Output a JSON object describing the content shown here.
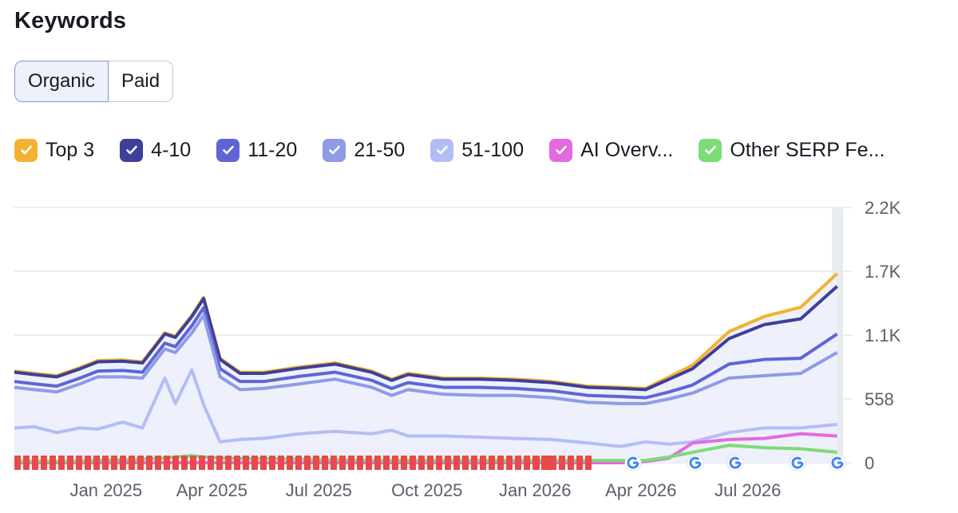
{
  "header": {
    "title": "Keywords"
  },
  "tabs": [
    {
      "label": "Organic",
      "active": true
    },
    {
      "label": "Paid",
      "active": false
    }
  ],
  "legend": [
    {
      "label": "Top 3",
      "color": "#f2b233"
    },
    {
      "label": "4-10",
      "color": "#3d3f99"
    },
    {
      "label": "11-20",
      "color": "#5f65d4"
    },
    {
      "label": "21-50",
      "color": "#8f9be6"
    },
    {
      "label": "51-100",
      "color": "#b3bdf5"
    },
    {
      "label": "AI Overv...",
      "color": "#e46adf"
    },
    {
      "label": "Other SERP Fe...",
      "color": "#7ddc75"
    }
  ],
  "colors": {
    "gridline": "#e6e8ee",
    "tick_text": "#5b5f6b",
    "area_fill": "#eef0fc",
    "event_marker": "#e84a4a"
  },
  "chart_data": {
    "type": "area",
    "stacked": true,
    "x_unit": "month",
    "x_range": [
      "2024-10-15",
      "2026-09-20"
    ],
    "x_ticks": [
      "Jan 2025",
      "Apr 2025",
      "Jul 2025",
      "Oct 2025",
      "Jan 2026",
      "Apr 2026",
      "Jul 2026"
    ],
    "y_ticks": [
      "0",
      "558",
      "1.1K",
      "1.7K",
      "2.2K"
    ],
    "ylim": [
      0,
      2200
    ],
    "grid": true,
    "y_axis_position": "right",
    "legend_position": "top",
    "x": [
      "2024-10-15",
      "2024-11-01",
      "2024-11-20",
      "2024-12-10",
      "2024-12-25",
      "2025-01-15",
      "2025-02-01",
      "2025-02-20",
      "2025-03-01",
      "2025-03-15",
      "2025-03-25",
      "2025-04-08",
      "2025-04-25",
      "2025-05-15",
      "2025-06-15",
      "2025-07-15",
      "2025-08-15",
      "2025-09-01",
      "2025-09-15",
      "2025-10-15",
      "2025-11-15",
      "2025-12-15",
      "2026-01-15",
      "2026-02-15",
      "2026-03-15",
      "2026-04-05",
      "2026-04-25",
      "2026-05-15",
      "2026-06-15",
      "2026-07-15",
      "2026-08-15",
      "2026-09-15"
    ],
    "series": [
      {
        "name": "51-100",
        "values": [
          300,
          310,
          260,
          300,
          290,
          350,
          300,
          730,
          510,
          800,
          500,
          180,
          200,
          210,
          250,
          270,
          250,
          280,
          230,
          230,
          220,
          210,
          200,
          170,
          140,
          180,
          160,
          180,
          260,
          300,
          300,
          330
        ]
      },
      {
        "name": "21-50",
        "values": [
          350,
          320,
          350,
          380,
          450,
          390,
          430,
          250,
          440,
          320,
          770,
          560,
          430,
          430,
          430,
          450,
          400,
          300,
          400,
          360,
          360,
          370,
          360,
          350,
          370,
          330,
          390,
          420,
          470,
          450,
          470,
          620
        ]
      },
      {
        "name": "11-20",
        "values": [
          50,
          50,
          50,
          50,
          50,
          55,
          50,
          50,
          50,
          60,
          65,
          70,
          70,
          60,
          65,
          60,
          60,
          60,
          60,
          60,
          70,
          60,
          60,
          60,
          60,
          50,
          60,
          70,
          120,
          140,
          130,
          160
        ]
      },
      {
        "name": "4-10",
        "values": [
          80,
          80,
          80,
          80,
          80,
          80,
          80,
          80,
          80,
          80,
          80,
          80,
          70,
          70,
          70,
          70,
          70,
          70,
          70,
          70,
          70,
          70,
          70,
          70,
          70,
          70,
          110,
          140,
          220,
          300,
          340,
          410
        ]
      },
      {
        "name": "Top 3",
        "values": [
          10,
          10,
          10,
          10,
          10,
          10,
          10,
          10,
          10,
          10,
          10,
          10,
          10,
          10,
          10,
          10,
          10,
          10,
          10,
          10,
          10,
          10,
          10,
          10,
          10,
          10,
          20,
          30,
          60,
          70,
          100,
          110
        ]
      }
    ],
    "overlay_series": [
      {
        "name": "AI Overv...",
        "values": [
          0,
          0,
          0,
          0,
          0,
          0,
          0,
          0,
          0,
          0,
          0,
          0,
          0,
          0,
          0,
          0,
          0,
          0,
          0,
          0,
          0,
          0,
          0,
          0,
          0,
          10,
          40,
          170,
          200,
          210,
          250,
          230
        ]
      },
      {
        "name": "Other SERP Fe...",
        "values": [
          10,
          10,
          10,
          15,
          20,
          25,
          30,
          40,
          50,
          60,
          50,
          40,
          35,
          35,
          30,
          25,
          20,
          20,
          20,
          20,
          20,
          20,
          20,
          20,
          20,
          20,
          50,
          90,
          150,
          130,
          120,
          90
        ]
      }
    ]
  }
}
